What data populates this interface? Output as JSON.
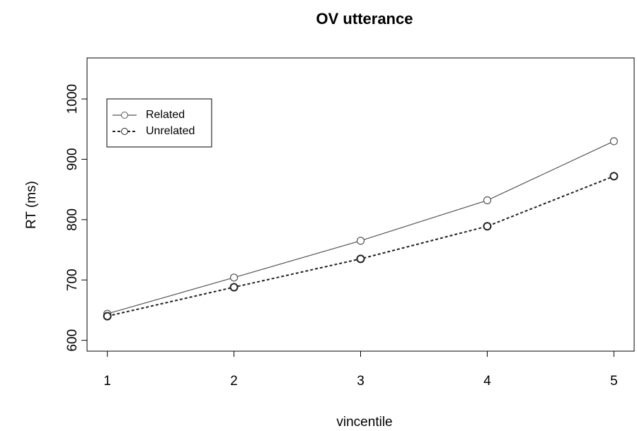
{
  "chart_data": {
    "type": "line",
    "title": "OV utterance",
    "x_label": "vincentile",
    "y_label": "RT (ms)",
    "x": [
      1,
      2,
      3,
      4,
      5
    ],
    "series": [
      {
        "name": "Related",
        "color": "#555555",
        "dash": "solid",
        "values": [
          644,
          704,
          765,
          832,
          930
        ]
      },
      {
        "name": "Unrelated",
        "color": "#222222",
        "dash": "dashed",
        "values": [
          640,
          688,
          735,
          789,
          872
        ]
      }
    ],
    "xlim": [
      0.84,
      5.16
    ],
    "xticks": [
      1,
      2,
      3,
      4,
      5
    ],
    "ylim": [
      582,
      1068
    ],
    "yticks": [
      600,
      700,
      800,
      900,
      1000
    ],
    "legend": "top-left",
    "grid": false
  }
}
